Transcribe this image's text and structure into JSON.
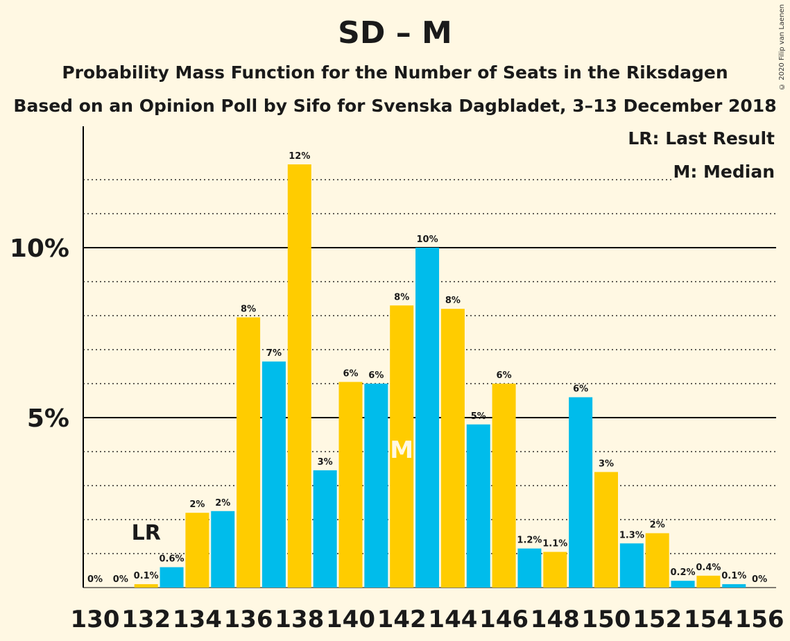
{
  "title": "SD – M",
  "subtitle": "Probability Mass Function for the Number of Seats in the Riksdagen",
  "subtitle2": "Based on an Opinion Poll by Sifo for Svenska Dagbladet, 3–13 December 2018",
  "copyright": "© 2020 Filip van Laenen",
  "legend": {
    "last_result": "LR: Last Result",
    "median": "M: Median"
  },
  "colors": {
    "background": "#FFF8E3",
    "yellow": "#FFCC00",
    "blue": "#00BCEB",
    "median_text": "#FFF8E3"
  },
  "chart_data": {
    "type": "bar",
    "x": [
      130,
      131,
      132,
      133,
      134,
      135,
      136,
      137,
      138,
      139,
      140,
      141,
      142,
      143,
      144,
      145,
      146,
      147,
      148,
      149,
      150,
      151,
      152,
      153,
      154,
      155,
      156
    ],
    "values": [
      0,
      0,
      0.1,
      0.6,
      2.2,
      2.25,
      7.95,
      6.65,
      12.45,
      3.45,
      6.05,
      6.0,
      8.3,
      10.0,
      8.2,
      4.8,
      6.0,
      1.15,
      1.05,
      5.6,
      3.4,
      1.3,
      1.6,
      0.2,
      0.35,
      0.1,
      0
    ],
    "labels": [
      "0%",
      "0%",
      "0.1%",
      "0.6%",
      "2%",
      "2%",
      "8%",
      "7%",
      "12%",
      "3%",
      "6%",
      "6%",
      "8%",
      "10%",
      "8%",
      "5%",
      "6%",
      "1.2%",
      "1.1%",
      "6%",
      "3%",
      "1.3%",
      "2%",
      "0.2%",
      "0.4%",
      "0.1%",
      "0%"
    ],
    "x_tick_labels": [
      "130",
      "132",
      "134",
      "136",
      "138",
      "140",
      "142",
      "144",
      "146",
      "148",
      "150",
      "152",
      "154",
      "156"
    ],
    "y_tick_labels": [
      "5%",
      "10%"
    ],
    "y_ticks": [
      5,
      10
    ],
    "ylim": [
      0,
      13.5
    ],
    "last_result_seat": 132,
    "last_result_label": "LR",
    "median_seat": 142,
    "median_label": "M"
  }
}
